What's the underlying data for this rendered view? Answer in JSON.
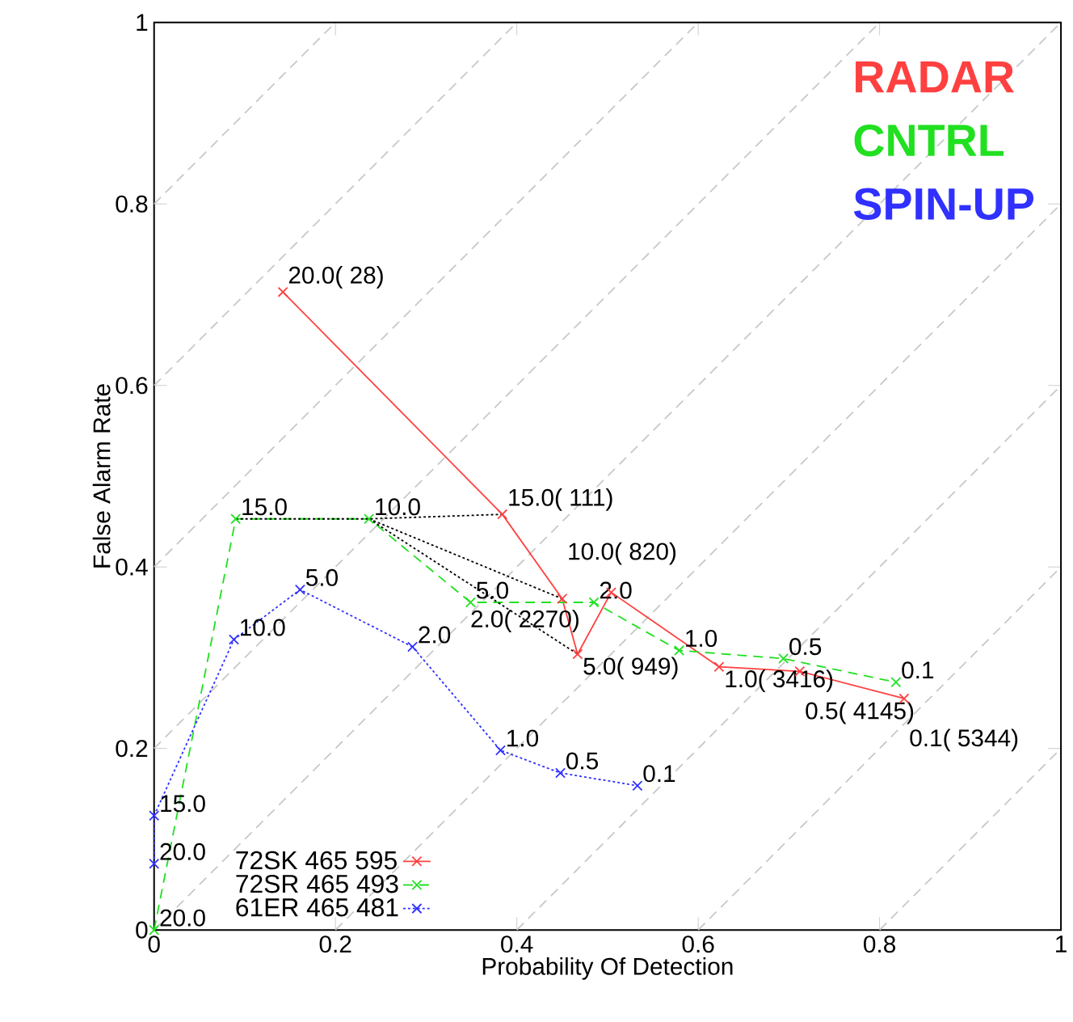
{
  "chart_data": {
    "type": "line",
    "xlabel": "Probability Of Detection",
    "ylabel": "False Alarm Rate",
    "xlim": [
      0,
      1
    ],
    "ylim": [
      0,
      1
    ],
    "xticks": [
      0,
      0.2,
      0.4,
      0.6,
      0.8,
      1
    ],
    "yticks": [
      0,
      0.2,
      0.4,
      0.6,
      0.8,
      1
    ],
    "grid": false,
    "legend": "bottom left",
    "annotations": [
      "RADAR",
      "CNTRL",
      "SPIN-UP",
      {
        "text": "20.0",
        "x": 0,
        "y": 0
      },
      {
        "text": "15.0",
        "x": 0.09,
        "y": 0.453
      },
      {
        "text": "10.0",
        "x": 0.237,
        "y": 0.453
      },
      {
        "text": "5.0",
        "x": 0.349,
        "y": 0.361
      },
      {
        "text": "2.0",
        "x": 0.485,
        "y": 0.361
      },
      {
        "text": "1.0",
        "x": 0.579,
        "y": 0.308
      },
      {
        "text": "0.5",
        "x": 0.694,
        "y": 0.299
      },
      {
        "text": "0.1",
        "x": 0.818,
        "y": 0.273
      },
      {
        "text": "20.0",
        "x": 0,
        "y": 0.073
      },
      {
        "text": "15.0",
        "x": 0,
        "y": 0.126
      },
      {
        "text": "10.0",
        "x": 0.088,
        "y": 0.32
      },
      {
        "text": "5.0",
        "x": 0.161,
        "y": 0.375
      },
      {
        "text": "2.0",
        "x": 0.285,
        "y": 0.312
      },
      {
        "text": "1.0",
        "x": 0.382,
        "y": 0.198
      },
      {
        "text": "0.5",
        "x": 0.448,
        "y": 0.173
      },
      {
        "text": "0.1",
        "x": 0.533,
        "y": 0.159
      },
      {
        "text": "20.0(   28)",
        "x": 0.142,
        "y": 0.703
      },
      {
        "text": "15.0(  111)",
        "x": 0.384,
        "y": 0.458
      },
      {
        "text": "10.0(  820)",
        "x": 0.45,
        "y": 0.365
      },
      {
        "text": "5.0(  949)",
        "x": 0.467,
        "y": 0.304
      },
      {
        "text": "2.0( 2270)",
        "x": 0.504,
        "y": 0.372
      },
      {
        "text": "1.0( 3416)",
        "x": 0.623,
        "y": 0.29
      },
      {
        "text": "0.5( 4145)",
        "x": 0.712,
        "y": 0.285
      },
      {
        "text": "0.1( 5344)",
        "x": 0.827,
        "y": 0.255
      }
    ],
    "series": [
      {
        "color": "#c8c8c8",
        "line_style": "dashed",
        "marker": "none",
        "x": [
          0,
          0.2
        ],
        "values": [
          0.8,
          1
        ]
      },
      {
        "color": "#c8c8c8",
        "line_style": "dashed",
        "marker": "none",
        "x": [
          0,
          0.4
        ],
        "values": [
          0.6,
          1
        ]
      },
      {
        "color": "#c8c8c8",
        "line_style": "dashed",
        "marker": "none",
        "x": [
          0,
          0.6
        ],
        "values": [
          0.4,
          1
        ]
      },
      {
        "color": "#c8c8c8",
        "line_style": "dashed",
        "marker": "none",
        "x": [
          0,
          0.8
        ],
        "values": [
          0.2,
          1
        ]
      },
      {
        "color": "#c8c8c8",
        "line_style": "dashed",
        "marker": "none",
        "x": [
          0,
          1
        ],
        "values": [
          0,
          1
        ]
      },
      {
        "color": "#c8c8c8",
        "line_style": "dashed",
        "marker": "none",
        "x": [
          0.2,
          1
        ],
        "values": [
          0,
          0.8
        ]
      },
      {
        "color": "#c8c8c8",
        "line_style": "dashed",
        "marker": "none",
        "x": [
          0.4,
          1
        ],
        "values": [
          0,
          0.6
        ]
      },
      {
        "color": "#c8c8c8",
        "line_style": "dashed",
        "marker": "none",
        "x": [
          0.6,
          1
        ],
        "values": [
          0,
          0.4
        ]
      },
      {
        "color": "#c8c8c8",
        "line_style": "dashed",
        "marker": "none",
        "x": [
          0.8,
          1
        ],
        "values": [
          0,
          0.2
        ]
      },
      {
        "name": "72SK   465   595",
        "color": "#ff4040",
        "line_style": "solid",
        "marker": "cross",
        "x": [
          0.142,
          0.384,
          0.45,
          0.467,
          0.504,
          0.623,
          0.712,
          0.827
        ],
        "values": [
          0.703,
          0.458,
          0.365,
          0.304,
          0.372,
          0.29,
          0.285,
          0.255
        ]
      },
      {
        "name": "72SR   465   493",
        "color": "#20e020",
        "line_style": "dashed",
        "marker": "cross",
        "x": [
          0,
          0.09,
          0.237,
          0.349,
          0.485,
          0.579,
          0.694,
          0.818
        ],
        "values": [
          0,
          0.453,
          0.453,
          0.361,
          0.361,
          0.308,
          0.299,
          0.273
        ]
      },
      {
        "name": "61ER   465   481",
        "color": "#3030ff",
        "line_style": "dotted",
        "marker": "cross",
        "x": [
          0,
          0,
          0.088,
          0.161,
          0.285,
          0.382,
          0.448,
          0.533
        ],
        "values": [
          0.073,
          0.126,
          0.32,
          0.375,
          0.312,
          0.198,
          0.173,
          0.159
        ]
      },
      {
        "color": "#000000",
        "line_style": "dotted",
        "marker": "none",
        "x": [
          0.09,
          0.237,
          0.384
        ],
        "values": [
          0.453,
          0.453,
          0.458
        ]
      },
      {
        "color": "#000000",
        "line_style": "dotted",
        "marker": "none",
        "x": [
          0.237,
          0.45
        ],
        "values": [
          0.453,
          0.365
        ]
      },
      {
        "color": "#000000",
        "line_style": "dotted",
        "marker": "none",
        "x": [
          0.237,
          0.467
        ],
        "values": [
          0.453,
          0.304
        ]
      }
    ]
  }
}
